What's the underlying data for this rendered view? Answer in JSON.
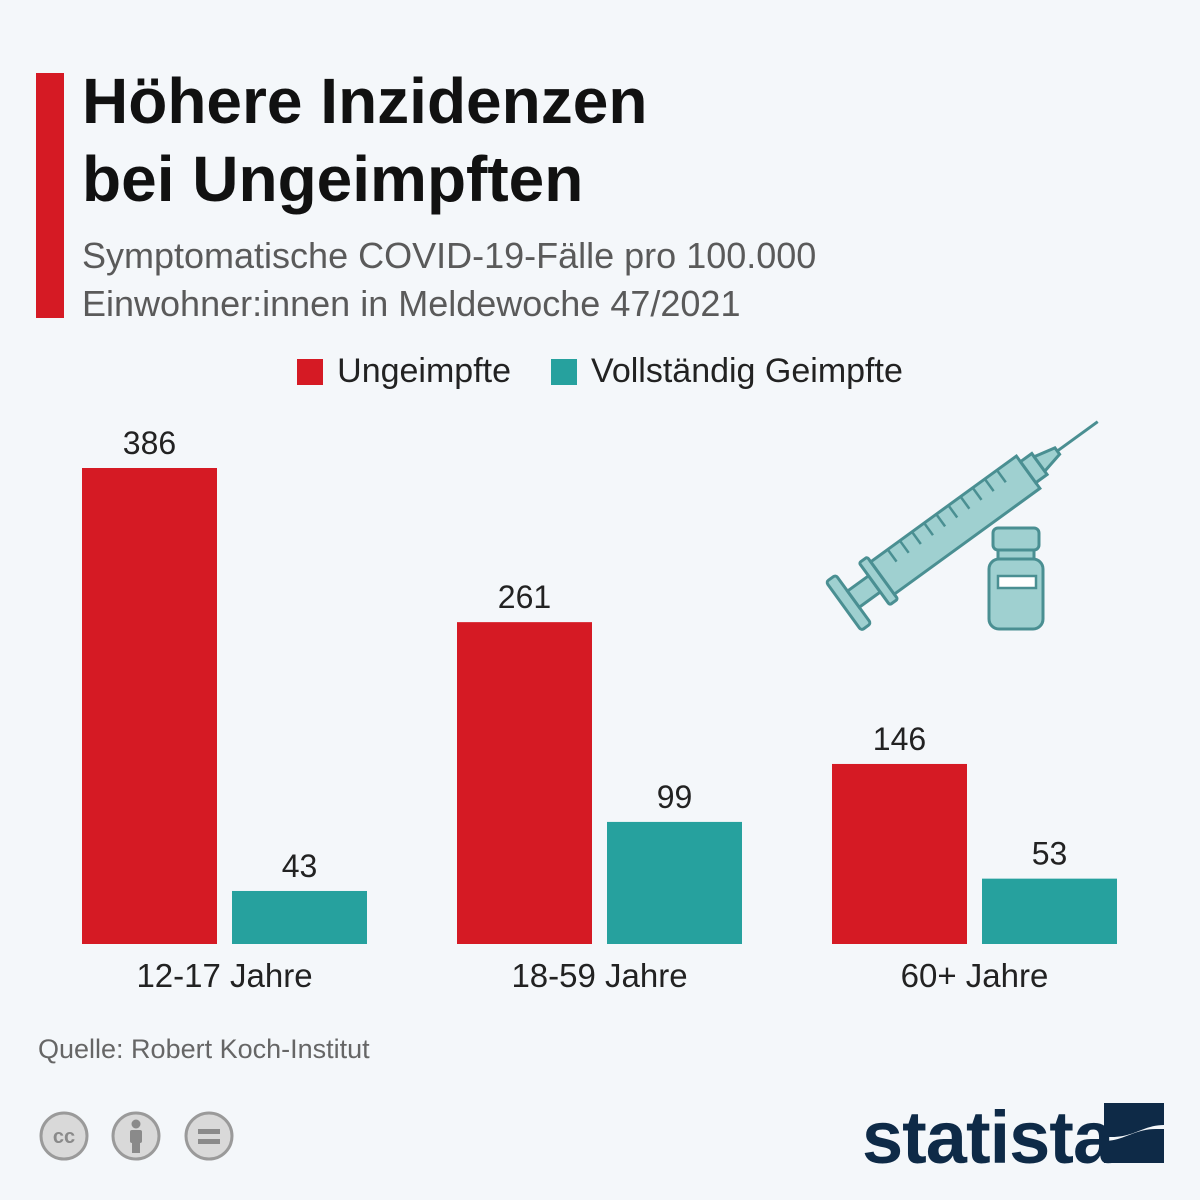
{
  "header": {
    "title_line1": "Höhere Inzidenzen",
    "title_line2": "bei Ungeimpften",
    "subtitle_line1": "Symptomatische COVID-19-Fälle pro 100.000",
    "subtitle_line2": "Einwohner:innen in Meldewoche 47/2021",
    "accent_color": "#d51a24"
  },
  "chart_data": {
    "type": "bar",
    "title": "Höhere Inzidenzen bei Ungeimpften",
    "subtitle": "Symptomatische COVID-19-Fälle pro 100.000 Einwohner:innen in Meldewoche 47/2021",
    "categories": [
      "12-17 Jahre",
      "18-59 Jahre",
      "60+ Jahre"
    ],
    "series": [
      {
        "name": "Ungeimpfte",
        "color": "#d51a24",
        "values": [
          386,
          261,
          146
        ]
      },
      {
        "name": "Vollständig Geimpfte",
        "color": "#26a19e",
        "values": [
          43,
          99,
          53
        ]
      }
    ],
    "ylim": [
      0,
      386
    ],
    "grid": false,
    "legend": "top-center",
    "data_labels": true
  },
  "illustration": {
    "icons": [
      "syringe-icon",
      "vial-icon"
    ],
    "color": "#9fd0d0"
  },
  "footer": {
    "source": "Quelle: Robert Koch-Institut",
    "license_icons": [
      "cc-icon",
      "attribution-icon",
      "no-derivatives-icon"
    ],
    "brand": "statista",
    "brand_color": "#0e2a47"
  }
}
